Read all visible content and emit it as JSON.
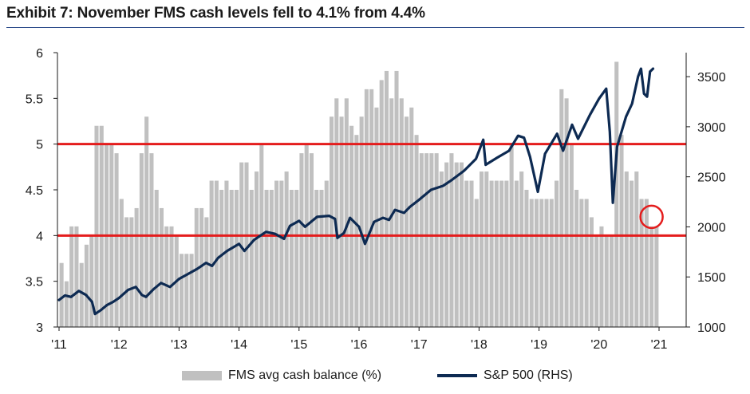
{
  "title": "Exhibit 7: November FMS cash levels fell to 4.1% from 4.4%",
  "legend": {
    "bars_label": "FMS avg cash balance (%)",
    "line_label": "S&P 500 (RHS)"
  },
  "colors": {
    "bars": "#c0c0c0",
    "line": "#0d2a52",
    "threshold": "#e41c1c",
    "circle": "#e41c1c",
    "title_rule": "#2b4a8a"
  },
  "chart_data": {
    "type": "bar",
    "title": "Exhibit 7: November FMS cash levels fell to 4.1% from 4.4%",
    "xlabel": "",
    "ylabel": "",
    "y2label": "",
    "x_ticks": [
      "'11",
      "'12",
      "'13",
      "'14",
      "'15",
      "'16",
      "'17",
      "'18",
      "'19",
      "'20",
      "'21"
    ],
    "x_range": [
      2011.0,
      2021.0
    ],
    "ylim": [
      3,
      6
    ],
    "yticks": [
      "3",
      "3.5",
      "4",
      "4.5",
      "5",
      "5.5",
      "6"
    ],
    "y2lim": [
      1000,
      3700
    ],
    "y2ticks": [
      "1000",
      "1500",
      "2000",
      "2500",
      "3000",
      "3500"
    ],
    "threshold_lines": [
      5.0,
      4.0
    ],
    "highlight": {
      "month": "2020-11",
      "value": 4.1
    },
    "legend_position": "bottom",
    "grid": false,
    "series": [
      {
        "name": "FMS avg cash balance (%)",
        "kind": "bar",
        "axis": "left",
        "start": "2011-01",
        "values": [
          3.7,
          3.5,
          4.1,
          4.1,
          3.7,
          3.9,
          4.0,
          5.2,
          5.2,
          5.0,
          5.0,
          4.9,
          4.4,
          4.2,
          4.2,
          4.3,
          4.9,
          5.3,
          4.9,
          4.5,
          4.3,
          4.1,
          4.1,
          4.0,
          3.8,
          3.8,
          3.8,
          4.3,
          4.3,
          4.2,
          4.6,
          4.6,
          4.5,
          4.6,
          4.5,
          4.5,
          4.8,
          4.8,
          4.5,
          4.7,
          5.0,
          4.5,
          4.5,
          4.6,
          4.6,
          4.7,
          4.5,
          4.5,
          4.9,
          5.0,
          4.9,
          4.5,
          4.5,
          4.6,
          5.3,
          5.5,
          5.3,
          5.5,
          5.2,
          5.1,
          5.3,
          5.6,
          5.6,
          5.4,
          5.7,
          5.8,
          5.5,
          5.8,
          5.5,
          5.3,
          5.4,
          5.1,
          4.9,
          4.9,
          4.9,
          4.9,
          4.7,
          4.8,
          4.9,
          4.8,
          4.8,
          4.6,
          4.6,
          4.4,
          4.7,
          4.7,
          4.6,
          4.6,
          4.6,
          4.6,
          5.0,
          4.6,
          4.7,
          4.5,
          4.4,
          4.4,
          4.4,
          4.4,
          4.4,
          4.6,
          5.6,
          5.5,
          5.0,
          4.5,
          4.4,
          4.4,
          4.2,
          4.0,
          4.1,
          4.0,
          4.0,
          5.9,
          5.1,
          4.7,
          4.6,
          4.7,
          4.4,
          4.4,
          4.1,
          4.1
        ]
      },
      {
        "name": "S&P 500 (RHS)",
        "kind": "line",
        "axis": "right",
        "points": [
          [
            2011.0,
            1270
          ],
          [
            2011.1,
            1315
          ],
          [
            2011.2,
            1300
          ],
          [
            2011.33,
            1360
          ],
          [
            2011.45,
            1320
          ],
          [
            2011.55,
            1250
          ],
          [
            2011.6,
            1130
          ],
          [
            2011.7,
            1170
          ],
          [
            2011.8,
            1220
          ],
          [
            2011.9,
            1250
          ],
          [
            2012.0,
            1290
          ],
          [
            2012.15,
            1370
          ],
          [
            2012.28,
            1400
          ],
          [
            2012.38,
            1320
          ],
          [
            2012.45,
            1300
          ],
          [
            2012.58,
            1380
          ],
          [
            2012.7,
            1440
          ],
          [
            2012.85,
            1400
          ],
          [
            2013.0,
            1480
          ],
          [
            2013.15,
            1530
          ],
          [
            2013.3,
            1580
          ],
          [
            2013.45,
            1640
          ],
          [
            2013.55,
            1610
          ],
          [
            2013.65,
            1690
          ],
          [
            2013.8,
            1760
          ],
          [
            2014.0,
            1830
          ],
          [
            2014.09,
            1760
          ],
          [
            2014.25,
            1870
          ],
          [
            2014.45,
            1950
          ],
          [
            2014.6,
            1930
          ],
          [
            2014.75,
            1880
          ],
          [
            2014.85,
            2010
          ],
          [
            2015.0,
            2060
          ],
          [
            2015.1,
            2000
          ],
          [
            2015.3,
            2100
          ],
          [
            2015.5,
            2110
          ],
          [
            2015.6,
            2080
          ],
          [
            2015.64,
            1890
          ],
          [
            2015.75,
            1940
          ],
          [
            2015.85,
            2090
          ],
          [
            2016.0,
            2000
          ],
          [
            2016.1,
            1830
          ],
          [
            2016.25,
            2050
          ],
          [
            2016.4,
            2090
          ],
          [
            2016.5,
            2070
          ],
          [
            2016.6,
            2170
          ],
          [
            2016.75,
            2140
          ],
          [
            2016.85,
            2200
          ],
          [
            2017.0,
            2270
          ],
          [
            2017.2,
            2370
          ],
          [
            2017.4,
            2410
          ],
          [
            2017.55,
            2470
          ],
          [
            2017.75,
            2560
          ],
          [
            2017.95,
            2680
          ],
          [
            2018.07,
            2870
          ],
          [
            2018.11,
            2620
          ],
          [
            2018.3,
            2690
          ],
          [
            2018.5,
            2760
          ],
          [
            2018.65,
            2910
          ],
          [
            2018.75,
            2890
          ],
          [
            2018.85,
            2700
          ],
          [
            2018.98,
            2350
          ],
          [
            2019.1,
            2730
          ],
          [
            2019.3,
            2930
          ],
          [
            2019.4,
            2760
          ],
          [
            2019.55,
            3020
          ],
          [
            2019.65,
            2880
          ],
          [
            2019.85,
            3120
          ],
          [
            2020.0,
            3280
          ],
          [
            2020.12,
            3380
          ],
          [
            2020.18,
            2950
          ],
          [
            2020.23,
            2240
          ],
          [
            2020.3,
            2800
          ],
          [
            2020.45,
            3100
          ],
          [
            2020.55,
            3230
          ],
          [
            2020.65,
            3500
          ],
          [
            2020.7,
            3580
          ],
          [
            2020.75,
            3330
          ],
          [
            2020.8,
            3300
          ],
          [
            2020.85,
            3550
          ],
          [
            2020.9,
            3580
          ]
        ]
      }
    ]
  }
}
